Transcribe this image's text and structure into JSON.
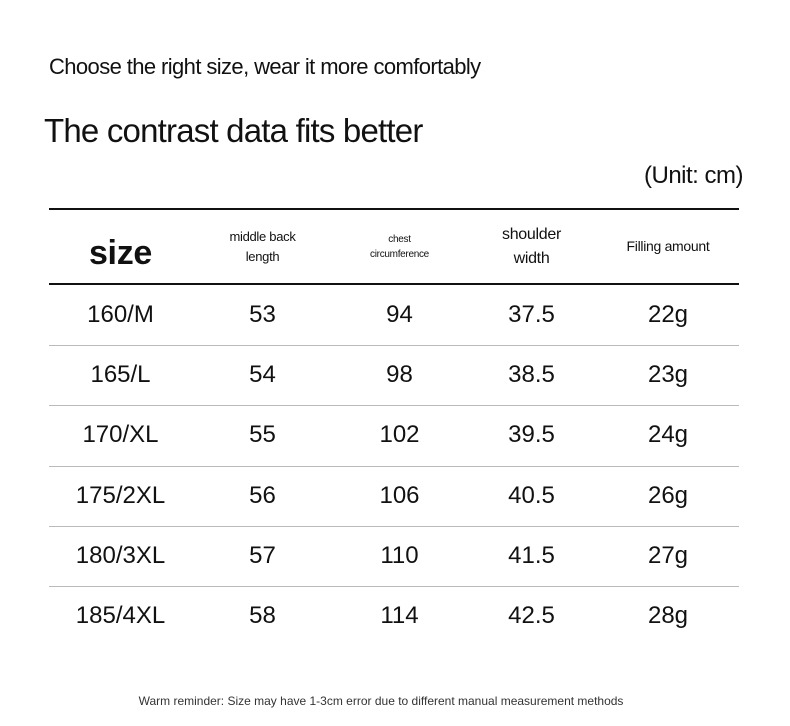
{
  "header": {
    "subtitle": "Choose the right size, wear it more comfortably",
    "title": "The contrast data fits better",
    "unit": "(Unit: cm)"
  },
  "table": {
    "columns": [
      "size",
      "middle back length",
      "chest circumference",
      "shoulder width",
      "Filling amount"
    ],
    "rows": [
      [
        "160/M",
        "53",
        "94",
        "37.5",
        "22g"
      ],
      [
        "165/L",
        "54",
        "98",
        "38.5",
        "23g"
      ],
      [
        "170/XL",
        "55",
        "102",
        "39.5",
        "24g"
      ],
      [
        "175/2XL",
        "56",
        "106",
        "40.5",
        "26g"
      ],
      [
        "180/3XL",
        "57",
        "110",
        "41.5",
        "27g"
      ],
      [
        "185/4XL",
        "58",
        "114",
        "42.5",
        "28g"
      ]
    ]
  },
  "footer": {
    "note": "Warm reminder: Size may have 1-3cm error due to different manual measurement methods"
  }
}
